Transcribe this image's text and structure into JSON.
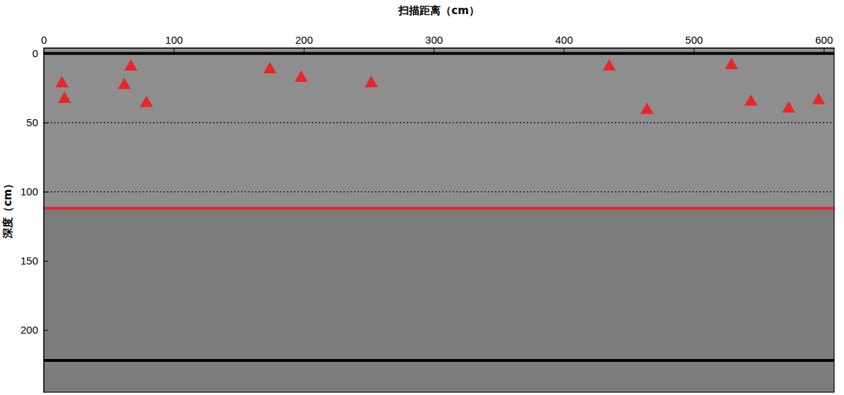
{
  "chart_data": {
    "type": "scatter",
    "x_label": "扫描距离（cm）",
    "y_label": "深度（cm）",
    "xlim": [
      0,
      608
    ],
    "xticks": [
      0,
      100,
      200,
      300,
      400,
      500,
      600
    ],
    "ylim": [
      245,
      -4
    ],
    "yticks": [
      0,
      50,
      100,
      150,
      200
    ],
    "grid": false,
    "series": [
      {
        "color": "#e8262a",
        "marker": "triangle",
        "x": [
          14,
          16,
          67,
          62,
          79,
          174,
          198,
          252,
          435,
          464,
          529,
          544,
          573,
          596
        ],
        "values": [
          21.7,
          33,
          9.6,
          23,
          36,
          11.6,
          17.7,
          21.7,
          9.6,
          41,
          8.6,
          35,
          40,
          34
        ]
      }
    ],
    "reference_lines": [
      {
        "value": 0,
        "color": "#000000",
        "line_style": "solid"
      },
      {
        "value": 50,
        "color": "#000000",
        "line_style": "dotted"
      },
      {
        "value": 100,
        "color": "#000000",
        "line_style": "dotted"
      },
      {
        "value": 112,
        "color": "#e8262a",
        "line_style": "solid"
      },
      {
        "value": 222,
        "color": "#000000",
        "line_style": "solid"
      }
    ]
  }
}
